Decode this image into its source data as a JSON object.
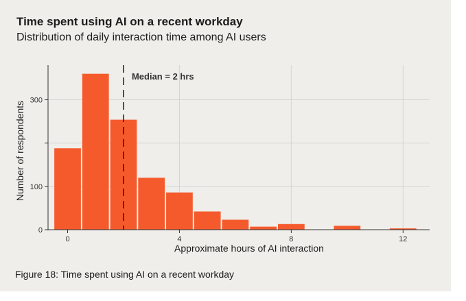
{
  "figure": {
    "title": "Time spent using AI on a recent workday",
    "subtitle": "Distribution of daily interaction time among AI users",
    "caption": "Figure 18: Time spent using AI on a recent workday"
  },
  "colors": {
    "bar": "#f55a2c",
    "panel": "#efeeea",
    "grid": "#d4d4d4",
    "axis": "#333333"
  },
  "chart_data": {
    "type": "bar",
    "title": "Time spent using AI on a recent workday",
    "subtitle": "Distribution of daily interaction time among AI users",
    "xlabel": "Approximate hours of AI interaction",
    "ylabel": "Number of respondents",
    "bin_width": 1,
    "bins": [
      {
        "x_start": -0.5,
        "x_end": 0.5,
        "value": 188
      },
      {
        "x_start": 0.5,
        "x_end": 1.5,
        "value": 360
      },
      {
        "x_start": 1.5,
        "x_end": 2.5,
        "value": 254
      },
      {
        "x_start": 2.5,
        "x_end": 3.5,
        "value": 120
      },
      {
        "x_start": 3.5,
        "x_end": 4.5,
        "value": 86
      },
      {
        "x_start": 4.5,
        "x_end": 5.5,
        "value": 42
      },
      {
        "x_start": 5.5,
        "x_end": 6.5,
        "value": 23
      },
      {
        "x_start": 6.5,
        "x_end": 7.5,
        "value": 7
      },
      {
        "x_start": 7.5,
        "x_end": 8.5,
        "value": 13
      },
      {
        "x_start": 8.5,
        "x_end": 9.5,
        "value": 0
      },
      {
        "x_start": 9.5,
        "x_end": 10.5,
        "value": 9
      },
      {
        "x_start": 10.5,
        "x_end": 11.5,
        "value": 0
      },
      {
        "x_start": 11.5,
        "x_end": 12.5,
        "value": 3
      }
    ],
    "xlim": [
      -0.7,
      12.95
    ],
    "ylim": [
      0,
      380
    ],
    "x_ticks": [
      0,
      4,
      8,
      12
    ],
    "y_ticks": [
      0,
      100,
      200,
      300
    ],
    "x_tick_labels": [
      "0",
      "4",
      "8",
      "12"
    ],
    "y_tick_labels": [
      "0",
      "100",
      "",
      "300"
    ],
    "grid": true,
    "annotation": {
      "type": "vertical-dashed-line",
      "x": 2,
      "label": "Median = 2 hrs"
    }
  }
}
